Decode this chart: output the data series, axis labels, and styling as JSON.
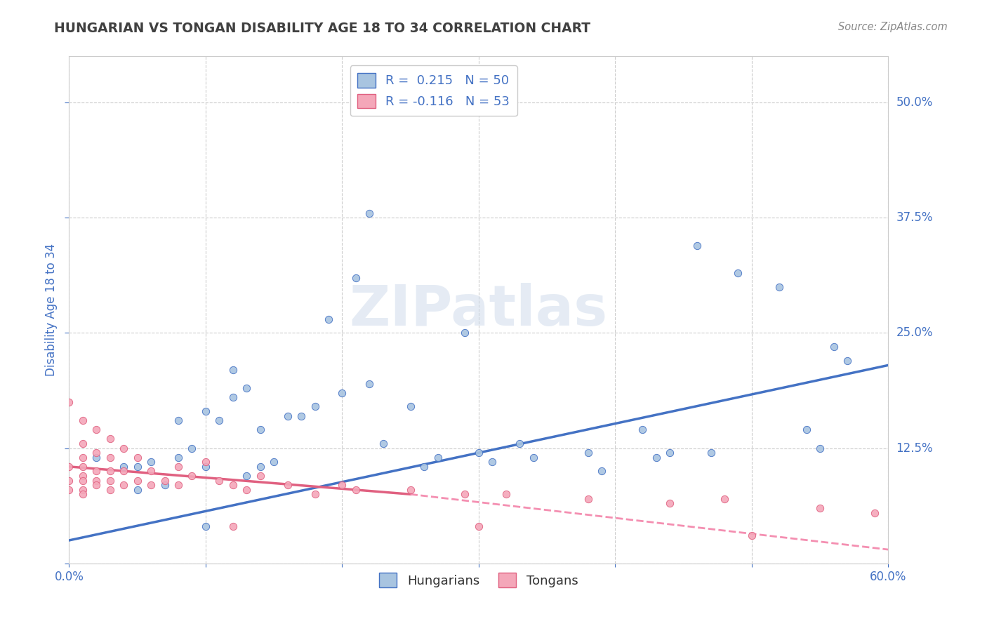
{
  "title": "HUNGARIAN VS TONGAN DISABILITY AGE 18 TO 34 CORRELATION CHART",
  "source_text": "Source: ZipAtlas.com",
  "ylabel": "Disability Age 18 to 34",
  "xlabel": "",
  "xlim": [
    0.0,
    0.6
  ],
  "ylim": [
    0.0,
    0.55
  ],
  "xticks": [
    0.0,
    0.1,
    0.2,
    0.3,
    0.4,
    0.5,
    0.6
  ],
  "xticklabels": [
    "0.0%",
    "",
    "",
    "",
    "",
    "",
    "60.0%"
  ],
  "yticks": [
    0.0,
    0.125,
    0.25,
    0.375,
    0.5
  ],
  "yticklabels": [
    "",
    "12.5%",
    "25.0%",
    "37.5%",
    "50.0%"
  ],
  "hungarian_R": 0.215,
  "hungarian_N": 50,
  "tongan_R": -0.116,
  "tongan_N": 53,
  "hungarian_color": "#a8c4e0",
  "tongan_color": "#f4a7b9",
  "hungarian_line_color": "#4472c4",
  "tongan_line_color": "#f48fb1",
  "tongan_line_solid_color": "#e06080",
  "watermark": "ZIPatlas",
  "hungarian_points": [
    [
      0.02,
      0.115
    ],
    [
      0.04,
      0.105
    ],
    [
      0.05,
      0.08
    ],
    [
      0.05,
      0.105
    ],
    [
      0.06,
      0.11
    ],
    [
      0.07,
      0.085
    ],
    [
      0.08,
      0.115
    ],
    [
      0.08,
      0.155
    ],
    [
      0.09,
      0.125
    ],
    [
      0.1,
      0.105
    ],
    [
      0.1,
      0.165
    ],
    [
      0.11,
      0.155
    ],
    [
      0.12,
      0.18
    ],
    [
      0.12,
      0.21
    ],
    [
      0.13,
      0.19
    ],
    [
      0.14,
      0.105
    ],
    [
      0.14,
      0.145
    ],
    [
      0.15,
      0.11
    ],
    [
      0.16,
      0.16
    ],
    [
      0.17,
      0.16
    ],
    [
      0.18,
      0.17
    ],
    [
      0.19,
      0.265
    ],
    [
      0.2,
      0.185
    ],
    [
      0.21,
      0.31
    ],
    [
      0.22,
      0.195
    ],
    [
      0.23,
      0.13
    ],
    [
      0.25,
      0.17
    ],
    [
      0.26,
      0.105
    ],
    [
      0.27,
      0.115
    ],
    [
      0.29,
      0.25
    ],
    [
      0.3,
      0.12
    ],
    [
      0.31,
      0.11
    ],
    [
      0.33,
      0.13
    ],
    [
      0.34,
      0.115
    ],
    [
      0.38,
      0.12
    ],
    [
      0.39,
      0.1
    ],
    [
      0.42,
      0.145
    ],
    [
      0.43,
      0.115
    ],
    [
      0.46,
      0.345
    ],
    [
      0.47,
      0.12
    ],
    [
      0.49,
      0.315
    ],
    [
      0.52,
      0.3
    ],
    [
      0.54,
      0.145
    ],
    [
      0.55,
      0.125
    ],
    [
      0.57,
      0.22
    ],
    [
      0.22,
      0.38
    ],
    [
      0.44,
      0.12
    ],
    [
      0.13,
      0.095
    ],
    [
      0.56,
      0.235
    ],
    [
      0.1,
      0.04
    ]
  ],
  "tongan_points": [
    [
      0.0,
      0.175
    ],
    [
      0.0,
      0.105
    ],
    [
      0.0,
      0.09
    ],
    [
      0.0,
      0.08
    ],
    [
      0.01,
      0.155
    ],
    [
      0.01,
      0.13
    ],
    [
      0.01,
      0.115
    ],
    [
      0.01,
      0.105
    ],
    [
      0.01,
      0.095
    ],
    [
      0.01,
      0.09
    ],
    [
      0.01,
      0.08
    ],
    [
      0.01,
      0.075
    ],
    [
      0.02,
      0.145
    ],
    [
      0.02,
      0.12
    ],
    [
      0.02,
      0.1
    ],
    [
      0.02,
      0.09
    ],
    [
      0.02,
      0.085
    ],
    [
      0.03,
      0.135
    ],
    [
      0.03,
      0.115
    ],
    [
      0.03,
      0.1
    ],
    [
      0.03,
      0.09
    ],
    [
      0.03,
      0.08
    ],
    [
      0.04,
      0.125
    ],
    [
      0.04,
      0.1
    ],
    [
      0.04,
      0.085
    ],
    [
      0.05,
      0.115
    ],
    [
      0.05,
      0.09
    ],
    [
      0.06,
      0.1
    ],
    [
      0.06,
      0.085
    ],
    [
      0.07,
      0.09
    ],
    [
      0.08,
      0.105
    ],
    [
      0.08,
      0.085
    ],
    [
      0.09,
      0.095
    ],
    [
      0.1,
      0.11
    ],
    [
      0.11,
      0.09
    ],
    [
      0.12,
      0.085
    ],
    [
      0.13,
      0.08
    ],
    [
      0.14,
      0.095
    ],
    [
      0.16,
      0.085
    ],
    [
      0.18,
      0.075
    ],
    [
      0.2,
      0.085
    ],
    [
      0.21,
      0.08
    ],
    [
      0.25,
      0.08
    ],
    [
      0.29,
      0.075
    ],
    [
      0.32,
      0.075
    ],
    [
      0.38,
      0.07
    ],
    [
      0.44,
      0.065
    ],
    [
      0.48,
      0.07
    ],
    [
      0.55,
      0.06
    ],
    [
      0.59,
      0.055
    ],
    [
      0.12,
      0.04
    ],
    [
      0.3,
      0.04
    ],
    [
      0.5,
      0.03
    ]
  ],
  "hu_line_x0": 0.0,
  "hu_line_y0": 0.025,
  "hu_line_x1": 0.6,
  "hu_line_y1": 0.215,
  "to_line_x0": 0.0,
  "to_line_y0": 0.105,
  "to_line_x1": 0.25,
  "to_line_y1": 0.075,
  "to_line_dash_x0": 0.25,
  "to_line_dash_y0": 0.075,
  "to_line_dash_x1": 0.6,
  "to_line_dash_y1": 0.015,
  "background_color": "#ffffff",
  "grid_color": "#cccccc",
  "title_color": "#404040",
  "tick_color": "#4472c4"
}
